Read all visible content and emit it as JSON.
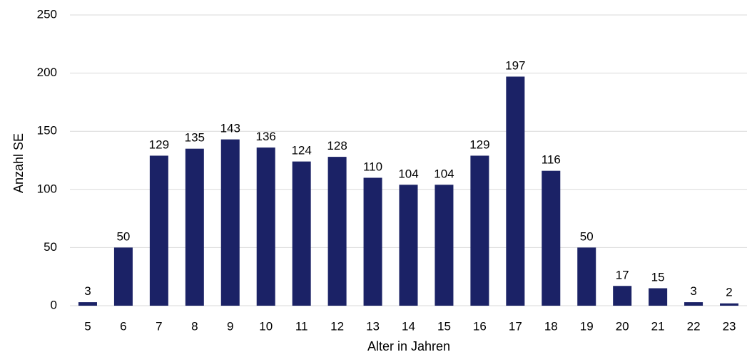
{
  "chart_data": {
    "type": "bar",
    "categories": [
      "5",
      "6",
      "7",
      "8",
      "9",
      "10",
      "11",
      "12",
      "13",
      "14",
      "15",
      "16",
      "17",
      "18",
      "19",
      "20",
      "21",
      "22",
      "23"
    ],
    "values": [
      3,
      50,
      129,
      135,
      143,
      136,
      124,
      128,
      110,
      104,
      104,
      129,
      197,
      116,
      50,
      17,
      15,
      3,
      2
    ],
    "data_labels": [
      "3",
      "50",
      "129",
      "135",
      "143",
      "136",
      "124",
      "128",
      "110",
      "104",
      "104",
      "129",
      "197",
      "116",
      "50",
      "17",
      "15",
      "3",
      "2"
    ],
    "xlabel": "Alter in Jahren",
    "ylabel": "Anzahl SE",
    "ylim": [
      0,
      250
    ],
    "y_ticks": [
      0,
      50,
      100,
      150,
      200,
      250
    ],
    "y_tick_labels": [
      "0",
      "50",
      "100",
      "150",
      "200",
      "250"
    ],
    "grid": true,
    "legend": "none",
    "bar_color": "#1b2266",
    "grid_color": "#d9d9d9"
  }
}
